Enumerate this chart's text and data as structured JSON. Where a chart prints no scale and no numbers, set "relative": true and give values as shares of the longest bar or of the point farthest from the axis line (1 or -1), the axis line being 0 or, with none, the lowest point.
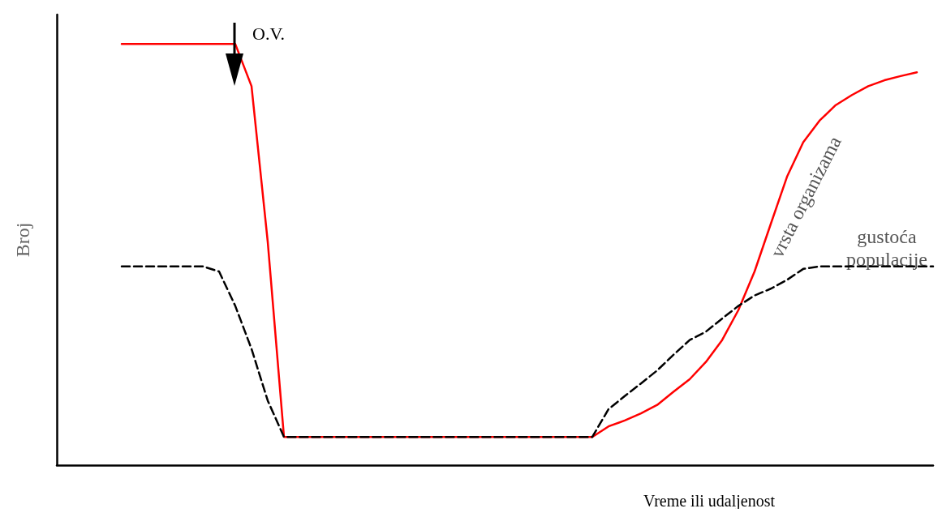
{
  "chart_data": {
    "type": "line",
    "relative": true,
    "xlabel": "Vreme ili udaljenost",
    "ylabel": "Broj",
    "annotations": [
      "O.V."
    ],
    "grid": false,
    "legend": false,
    "marker": "none",
    "categories": [
      null,
      null,
      null,
      null,
      null,
      null,
      null,
      null,
      null,
      null,
      null,
      null,
      null,
      null,
      null,
      null,
      null,
      null,
      null,
      null,
      null,
      null,
      null,
      null,
      null,
      null,
      null,
      null,
      null,
      null,
      null,
      null,
      null,
      null,
      null,
      null,
      null,
      null,
      null,
      null,
      null,
      null,
      null,
      null,
      null,
      null,
      null,
      null,
      null,
      null,
      null,
      null,
      null,
      null,
      null
    ],
    "series": [
      {
        "name": "vrsta organizama",
        "color": "#ff0000",
        "line_style": "solid",
        "values": [
          null,
          null,
          null,
          null,
          1.0,
          1.0,
          1.0,
          1.0,
          1.0,
          1.0,
          1.0,
          1.0,
          0.9,
          0.53,
          0.067,
          0.067,
          0.067,
          0.067,
          0.067,
          0.067,
          0.067,
          0.067,
          0.067,
          0.067,
          0.067,
          0.067,
          0.067,
          0.067,
          0.067,
          0.067,
          0.067,
          0.067,
          0.067,
          0.067,
          0.092,
          0.106,
          0.123,
          0.143,
          0.174,
          0.204,
          0.245,
          0.297,
          0.368,
          0.46,
          0.573,
          0.685,
          0.767,
          0.818,
          0.855,
          0.879,
          0.9,
          0.914,
          0.924,
          0.933,
          null
        ]
      },
      {
        "name": "gustoća\npopulacije",
        "color": "#000000",
        "line_style": "dashed",
        "values": [
          null,
          null,
          null,
          null,
          0.472,
          0.472,
          0.472,
          0.472,
          0.472,
          0.472,
          0.46,
          0.378,
          0.276,
          0.153,
          0.067,
          0.067,
          0.067,
          0.067,
          0.067,
          0.067,
          0.067,
          0.067,
          0.067,
          0.067,
          0.067,
          0.067,
          0.067,
          0.067,
          0.067,
          0.067,
          0.067,
          0.067,
          0.067,
          0.067,
          0.133,
          0.164,
          0.194,
          0.225,
          0.262,
          0.297,
          0.317,
          0.348,
          0.378,
          0.403,
          0.419,
          0.44,
          0.466,
          0.472,
          0.472,
          0.472,
          0.472,
          0.472,
          0.472,
          0.472,
          0.472
        ]
      }
    ]
  }
}
